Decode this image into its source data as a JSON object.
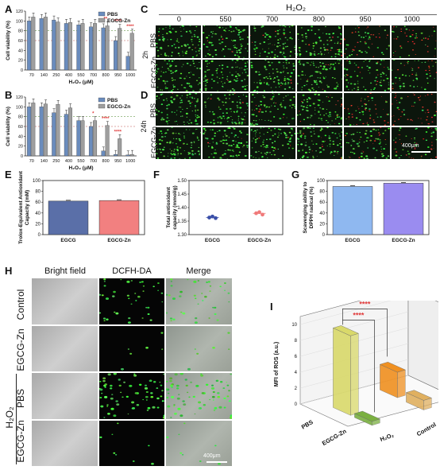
{
  "panel_letters": [
    "A",
    "B",
    "C",
    "D",
    "E",
    "F",
    "G",
    "H",
    "I"
  ],
  "legend": {
    "pbs": "PBS",
    "egcg_zn": "EGCG-Zn",
    "pbs_color": "#6a8cbd",
    "egcgzn_color": "#9e9e9e",
    "sig_color": "#e03a3a"
  },
  "chart_data": [
    {
      "id": "A",
      "type": "bar",
      "categories": [
        "70",
        "140",
        "250",
        "400",
        "550",
        "700",
        "800",
        "950",
        "1000"
      ],
      "series": [
        {
          "name": "PBS",
          "values": [
            100,
            105,
            102,
            95,
            92,
            88,
            86,
            60,
            28
          ]
        },
        {
          "name": "EGCG-Zn",
          "values": [
            108,
            108,
            98,
            97,
            95,
            95,
            90,
            85,
            75
          ]
        }
      ],
      "significance": [
        "",
        "",
        "",
        "",
        "",
        "",
        "**",
        "****",
        "****"
      ],
      "ylabel": "Cell viability (%)",
      "xlabel": "H₂O₂ (μM)",
      "ylim": [
        0,
        120
      ],
      "yticks": [
        "0",
        "20",
        "40",
        "60",
        "80",
        "100",
        "120"
      ]
    },
    {
      "id": "B",
      "type": "bar",
      "categories": [
        "70",
        "140",
        "250",
        "400",
        "550",
        "700",
        "800",
        "950",
        "1000"
      ],
      "series": [
        {
          "name": "PBS",
          "values": [
            100,
            100,
            88,
            85,
            72,
            60,
            10,
            3,
            2
          ]
        },
        {
          "name": "EGCG-Zn",
          "values": [
            108,
            106,
            105,
            98,
            72,
            72,
            62,
            35,
            3
          ]
        }
      ],
      "significance": [
        "",
        "",
        "",
        "",
        "",
        "*",
        "****",
        "****",
        ""
      ],
      "ylabel": "Cell viability (%)",
      "xlabel": "H₂O₂ (μM)",
      "ylim": [
        0,
        120
      ],
      "yticks": [
        "0",
        "20",
        "40",
        "60",
        "80",
        "100",
        "120"
      ]
    },
    {
      "id": "E",
      "type": "bar",
      "categories": [
        "EGCG",
        "EGCG-Zn"
      ],
      "values": [
        62,
        63
      ],
      "colors": [
        "#5a6fa8",
        "#f28080"
      ],
      "ylabel": "Trolox-Equivalent Antioxidant Capacity (mM)",
      "ylim": [
        0,
        100
      ],
      "yticks": [
        "0",
        "20",
        "40",
        "60",
        "80",
        "100"
      ]
    },
    {
      "id": "F",
      "type": "scatter",
      "categories": [
        "EGCG",
        "EGCG-Zn"
      ],
      "points": [
        [
          1.363,
          1.367,
          1.361
        ],
        [
          1.379,
          1.383,
          1.374
        ]
      ],
      "colors": [
        "#3a4fa8",
        "#f07a7a"
      ],
      "ylabel": "Total antioxidant capacity (mmol/g)",
      "ylim": [
        1.3,
        1.5
      ],
      "yticks": [
        "1.30",
        "1.35",
        "1.40",
        "1.45",
        "1.50"
      ]
    },
    {
      "id": "G",
      "type": "bar",
      "categories": [
        "EGCG",
        "EGCG-Zn"
      ],
      "values": [
        89,
        95
      ],
      "colors": [
        "#8fb8f0",
        "#9a8cf0"
      ],
      "ylabel": "Scavenging ability to DPPH radical (%)",
      "ylim": [
        0,
        100
      ],
      "yticks": [
        "0",
        "20",
        "40",
        "60",
        "80",
        "100"
      ]
    },
    {
      "id": "I",
      "type": "bar",
      "categories": [
        "PBS",
        "EGCG-Zn",
        "H₂O₂",
        "Control"
      ],
      "values": [
        10,
        0.5,
        3.2,
        1.2
      ],
      "colors": [
        "#d9d96a",
        "#7ab040",
        "#f09020",
        "#e0b060"
      ],
      "significance": [
        "****",
        "****"
      ],
      "ylabel": "MFI of ROS (a.u.)",
      "zlim": [
        0,
        10
      ],
      "zticks": [
        "0",
        "2",
        "4",
        "6",
        "8",
        "10"
      ]
    }
  ],
  "micro_C_D": {
    "header": "H₂O₂",
    "concentrations": [
      "0",
      "550",
      "700",
      "800",
      "950",
      "1000"
    ],
    "time_2h": "2h",
    "time_24h": "24h",
    "row_pbs": "PBS",
    "row_egcgzn": "EGCG-Zn",
    "scale": "400μm"
  },
  "micro_H": {
    "columns": [
      "Bright field",
      "DCFH-DA",
      "Merge"
    ],
    "rows": [
      "Control",
      "EGCG-Zn",
      "PBS",
      "EGCG-Zn"
    ],
    "group_label": "H₂O₂",
    "scale": "400μm"
  }
}
